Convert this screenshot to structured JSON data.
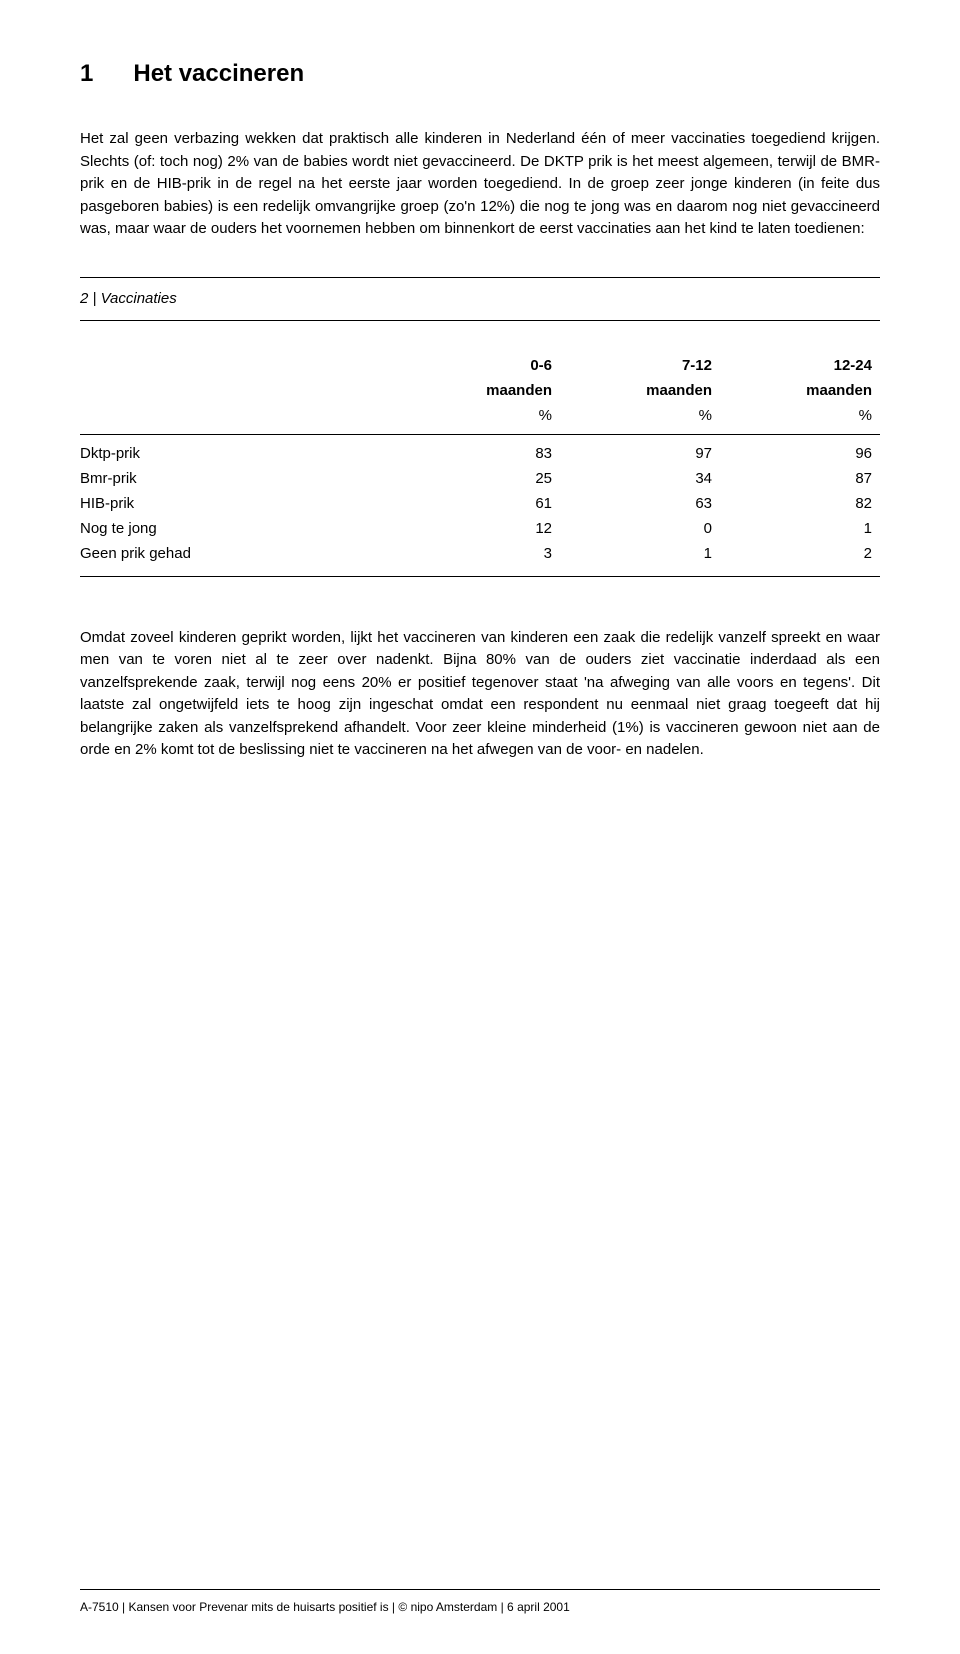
{
  "heading": {
    "number": "1",
    "title": "Het vaccineren"
  },
  "paragraphs": {
    "p1": "Het zal geen verbazing wekken dat praktisch alle kinderen in Nederland één of meer vaccinaties toegediend krijgen. Slechts (of: toch nog) 2% van de babies wordt niet gevaccineerd. De DKTP prik is het meest algemeen, terwijl de BMR-prik en de HIB-prik in de regel na het eerste jaar worden toegediend. In de groep zeer jonge kinderen (in feite dus pasgeboren babies) is een redelijk omvangrijke groep (zo'n 12%) die nog te jong was en daarom nog niet gevaccineerd was, maar waar de ouders het voornemen hebben om binnenkort de eerst vaccinaties aan het kind te laten toedienen:",
    "p2": "Omdat zoveel kinderen geprikt worden, lijkt het vaccineren van kinderen een zaak die redelijk vanzelf spreekt en waar men van te voren niet al te zeer over nadenkt. Bijna 80% van de ouders ziet vaccinatie inderdaad als een vanzelfsprekende zaak, terwijl nog eens 20% er positief tegenover staat 'na afweging van alle voors en tegens'. Dit laatste zal ongetwijfeld iets te hoog zijn ingeschat omdat een respondent nu eenmaal niet graag toegeeft dat hij belangrijke zaken als vanzelfsprekend afhandelt. Voor zeer kleine minderheid (1%) is vaccineren gewoon niet aan de orde en 2% komt tot de beslissing niet te vaccineren na het afwegen van de voor- en nadelen."
  },
  "table": {
    "caption": "2 | Vaccinaties",
    "columns": [
      {
        "line1": "0-6",
        "line2": "maanden"
      },
      {
        "line1": "7-12",
        "line2": "maanden"
      },
      {
        "line1": "12-24",
        "line2": "maanden"
      }
    ],
    "unit": "%",
    "rows": [
      {
        "label": "Dktp-prik",
        "values": [
          "83",
          "97",
          "96"
        ]
      },
      {
        "label": "Bmr-prik",
        "values": [
          "25",
          "34",
          "87"
        ]
      },
      {
        "label": "HIB-prik",
        "values": [
          "61",
          "63",
          "82"
        ]
      },
      {
        "label": "Nog te jong",
        "values": [
          "12",
          "0",
          "1"
        ]
      },
      {
        "label": "Geen prik gehad",
        "values": [
          "3",
          "1",
          "2"
        ]
      }
    ]
  },
  "footer": "A-7510 | Kansen voor Prevenar mits de huisarts positief is | © nipo Amsterdam | 6 april 2001"
}
